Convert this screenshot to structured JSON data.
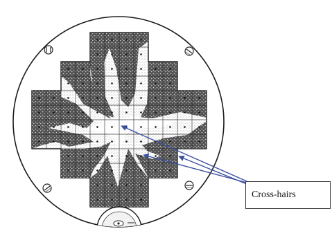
{
  "diagram": {
    "callout_label": "Cross-hairs",
    "colors": {
      "ink": "#1a1a1a",
      "stipple": "#555555",
      "arrow": "#3b4fa0",
      "background": "#ffffff"
    },
    "icons": [
      "screw-head-icon",
      "fixation-target-icon"
    ]
  }
}
